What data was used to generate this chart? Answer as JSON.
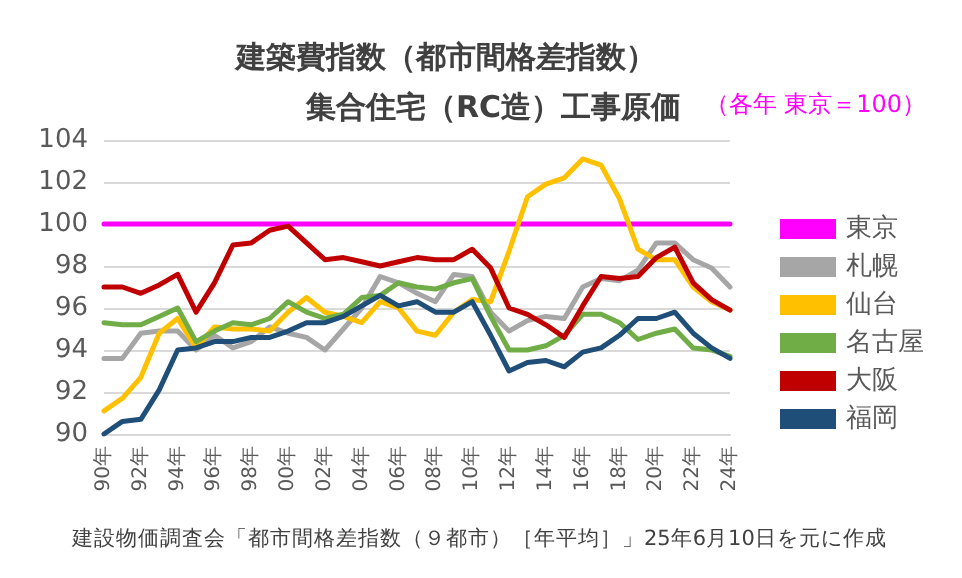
{
  "chart_data": {
    "type": "line",
    "title": "建築費指数（都市間格差指数）",
    "subtitle": "集合住宅（RC造）工事原価",
    "annotations": [
      "（各年 東京＝100）",
      "建設物価調査会「都市間格差指数（９都市）［年平均］」25年6月10日を元に作成"
    ],
    "categories": [
      "90年",
      null,
      "92年",
      null,
      "94年",
      null,
      "96年",
      null,
      "98年",
      null,
      "00年",
      null,
      "02年",
      null,
      "04年",
      null,
      "06年",
      null,
      "08年",
      null,
      "10年",
      null,
      "12年",
      null,
      "14年",
      null,
      "16年",
      null,
      "18年",
      null,
      "20年",
      null,
      "22年",
      null,
      "24年"
    ],
    "series": [
      {
        "name": "東京",
        "color": "#ff00ff",
        "values": [
          100,
          100,
          100,
          100,
          100,
          100,
          100,
          100,
          100,
          100,
          100,
          100,
          100,
          100,
          100,
          100,
          100,
          100,
          100,
          100,
          100,
          100,
          100,
          100,
          100,
          100,
          100,
          100,
          100,
          100,
          100,
          100,
          100,
          100,
          100
        ]
      },
      {
        "name": "札幌",
        "color": "#a6a6a6",
        "values": [
          93.6,
          93.6,
          94.8,
          94.9,
          94.9,
          94.0,
          94.7,
          94.1,
          94.4,
          95.1,
          94.8,
          94.6,
          94.0,
          95.0,
          96.0,
          97.5,
          97.2,
          96.7,
          96.3,
          97.6,
          97.5,
          95.8,
          94.9,
          95.4,
          95.6,
          95.5,
          97.0,
          97.4,
          97.3,
          97.8,
          99.1,
          99.1,
          98.3,
          97.9,
          97.0
        ]
      },
      {
        "name": "仙台",
        "color": "#ffc000",
        "values": [
          91.1,
          91.7,
          92.7,
          94.8,
          95.5,
          94.1,
          95.1,
          95.0,
          95.0,
          94.9,
          95.8,
          96.5,
          95.8,
          95.6,
          95.3,
          96.3,
          96.0,
          94.9,
          94.7,
          95.8,
          96.4,
          96.3,
          98.7,
          101.3,
          101.9,
          102.2,
          103.1,
          102.8,
          101.2,
          98.8,
          98.3,
          98.3,
          97.0,
          96.3,
          95.9
        ]
      },
      {
        "name": "名古屋",
        "color": "#70ad47",
        "values": [
          95.3,
          95.2,
          95.2,
          95.6,
          96.0,
          94.4,
          94.9,
          95.3,
          95.2,
          95.5,
          96.3,
          95.8,
          95.5,
          95.7,
          96.5,
          96.6,
          97.2,
          97.0,
          96.9,
          97.2,
          97.4,
          95.6,
          94.0,
          94.0,
          94.2,
          94.7,
          95.7,
          95.7,
          95.3,
          94.5,
          94.8,
          95.0,
          94.1,
          94.0,
          93.7
        ]
      },
      {
        "name": "大阪",
        "color": "#c00000",
        "values": [
          97.0,
          97.0,
          96.7,
          97.1,
          97.6,
          95.8,
          97.2,
          99.0,
          99.1,
          99.7,
          99.9,
          99.1,
          98.3,
          98.4,
          98.2,
          98.0,
          98.2,
          98.4,
          98.3,
          98.3,
          98.8,
          97.9,
          96.0,
          95.7,
          95.2,
          94.6,
          96.1,
          97.5,
          97.4,
          97.5,
          98.4,
          98.9,
          97.2,
          96.4,
          95.9
        ]
      },
      {
        "name": "福岡",
        "color": "#1f4e79",
        "values": [
          90.0,
          90.6,
          90.7,
          92.1,
          94.0,
          94.1,
          94.4,
          94.4,
          94.6,
          94.6,
          94.9,
          95.3,
          95.3,
          95.6,
          96.1,
          96.6,
          96.1,
          96.3,
          95.8,
          95.8,
          96.3,
          94.7,
          93.0,
          93.4,
          93.5,
          93.2,
          93.9,
          94.1,
          94.7,
          95.5,
          95.5,
          95.8,
          94.8,
          94.1,
          93.6
        ]
      }
    ],
    "ylim": [
      90,
      104
    ],
    "yticks": [
      90,
      92,
      94,
      96,
      98,
      100,
      102,
      104
    ],
    "grid": "y",
    "legend": "right",
    "marker": "none",
    "line_style": "solid"
  }
}
